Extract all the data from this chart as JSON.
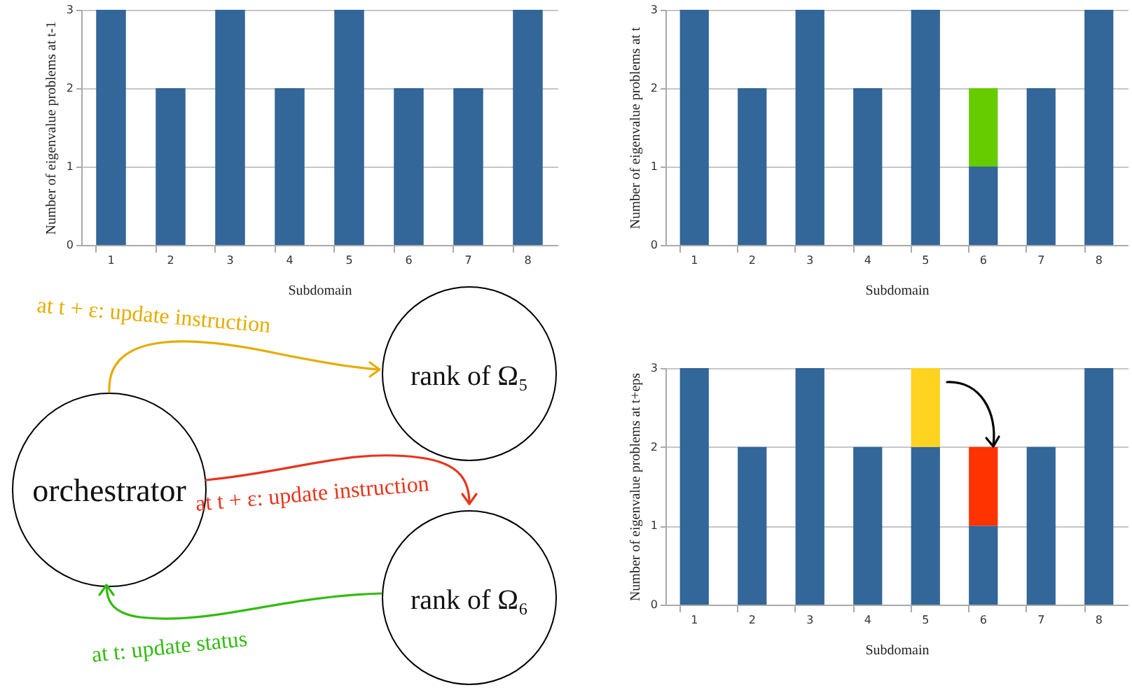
{
  "chart_data": [
    {
      "type": "bar",
      "xlabel": "Subdomain",
      "ylabel": "Number of eigenvalue problems at t-1",
      "categories": [
        "1",
        "2",
        "3",
        "4",
        "5",
        "6",
        "7",
        "8"
      ],
      "series": [
        {
          "color": "#336699",
          "values": [
            3,
            2,
            3,
            2,
            3,
            2,
            2,
            3
          ]
        }
      ],
      "ylim": [
        0,
        3
      ],
      "yticks": [
        0,
        1,
        2,
        3
      ],
      "grid": "y"
    },
    {
      "type": "bar",
      "stacked": true,
      "xlabel": "Subdomain",
      "ylabel": "Number of eigenvalue problems at t",
      "categories": [
        "1",
        "2",
        "3",
        "4",
        "5",
        "6",
        "7",
        "8"
      ],
      "series": [
        {
          "color": "#336699",
          "values": [
            3,
            2,
            3,
            2,
            3,
            1,
            2,
            3
          ]
        },
        {
          "color": "#66cc00",
          "values": [
            null,
            null,
            null,
            null,
            null,
            1,
            null,
            null
          ]
        }
      ],
      "ylim": [
        0,
        3
      ],
      "yticks": [
        0,
        1,
        2,
        3
      ],
      "grid": "y"
    },
    {
      "type": "other",
      "annotations": [
        "orchestrator",
        "rank of Ω₅",
        "rank of Ω₆",
        "at t + ε: update instruction",
        "at t + ε: update instruction",
        "at t: update status"
      ]
    },
    {
      "type": "bar",
      "stacked": true,
      "xlabel": "Subdomain",
      "ylabel": "Number of eigenvalue problems at t+eps",
      "categories": [
        "1",
        "2",
        "3",
        "4",
        "5",
        "6",
        "7",
        "8"
      ],
      "series": [
        {
          "color": "#336699",
          "values": [
            3,
            2,
            3,
            2,
            2,
            1,
            2,
            3
          ]
        },
        {
          "color": "#ffd320",
          "values": [
            null,
            null,
            null,
            null,
            1,
            null,
            null,
            null
          ]
        },
        {
          "color": "#ff3300",
          "values": [
            null,
            null,
            null,
            null,
            null,
            1,
            null,
            null
          ]
        }
      ],
      "ylim": [
        0,
        3
      ],
      "yticks": [
        0,
        1,
        2,
        3
      ],
      "grid": "y"
    }
  ]
}
